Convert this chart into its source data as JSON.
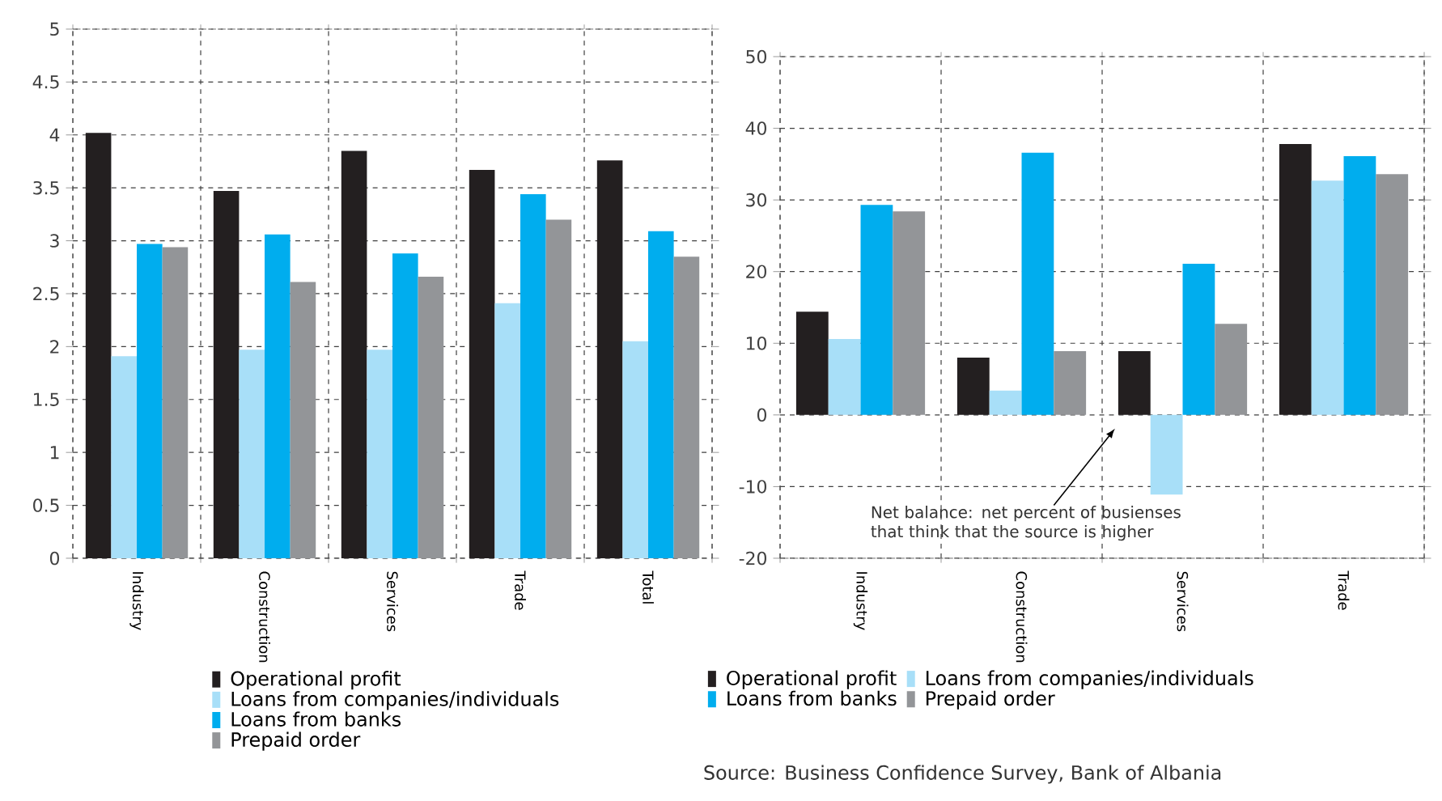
{
  "chart_data": [
    {
      "type": "bar",
      "categories": [
        "Industry",
        "Construction",
        "Services",
        "Trade",
        "Total"
      ],
      "series": [
        {
          "name": "Operational profit",
          "color": "#231f20",
          "values": [
            4.02,
            3.47,
            3.85,
            3.67,
            3.76
          ]
        },
        {
          "name": "Loans from companies/individuals",
          "color": "#a8dff8",
          "values": [
            1.91,
            1.97,
            1.97,
            2.41,
            2.05
          ]
        },
        {
          "name": "Loans from banks",
          "color": "#00adee",
          "values": [
            2.97,
            3.06,
            2.88,
            3.44,
            3.09
          ]
        },
        {
          "name": "Prepaid order",
          "color": "#939598",
          "values": [
            2.94,
            2.61,
            2.66,
            3.2,
            2.85
          ]
        }
      ],
      "ylim": [
        0,
        5
      ],
      "yticks": [
        0,
        0.5,
        1,
        1.5,
        2,
        2.5,
        3,
        3.5,
        4,
        4.5,
        5
      ],
      "grid": true,
      "legend": "bottom"
    },
    {
      "type": "bar",
      "categories": [
        "Industry",
        "Construction",
        "Services",
        "Trade"
      ],
      "series": [
        {
          "name": "Operational profit",
          "color": "#231f20",
          "values": [
            14.4,
            8.0,
            8.9,
            37.8
          ]
        },
        {
          "name": "Loans from companies/individuals",
          "color": "#a8dff8",
          "values": [
            10.6,
            3.4,
            -11.1,
            32.7
          ]
        },
        {
          "name": "Loans from banks",
          "color": "#00adee",
          "values": [
            29.3,
            36.6,
            21.1,
            36.1
          ]
        },
        {
          "name": "Prepaid order",
          "color": "#939598",
          "values": [
            28.4,
            8.9,
            12.7,
            33.6
          ]
        }
      ],
      "ylim": [
        -20,
        50
      ],
      "yticks": [
        -20,
        -10,
        0,
        10,
        20,
        30,
        40,
        50
      ],
      "grid": true,
      "legend": "bottom",
      "annotations": [
        "Net balance: net percent of busienses that think that the source is higher",
        "Source: Business Confidence Survey, Bank of Albania"
      ]
    }
  ]
}
